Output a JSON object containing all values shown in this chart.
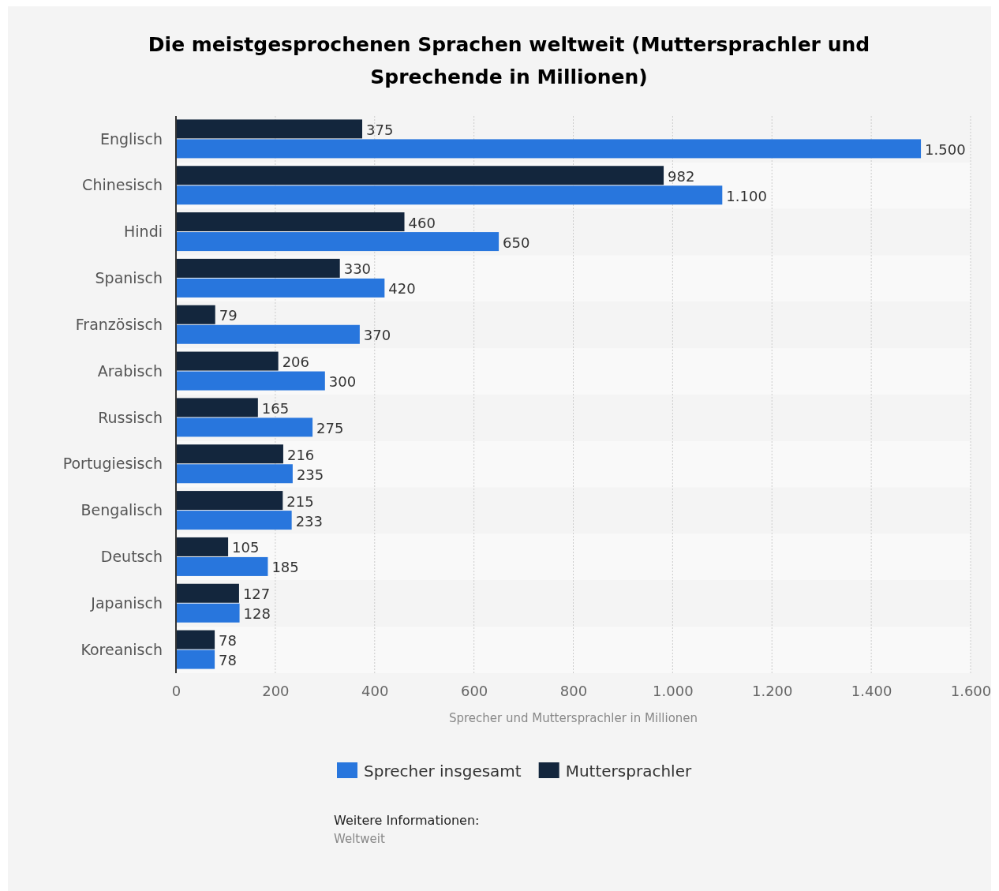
{
  "chart_data": {
    "type": "bar",
    "orientation": "horizontal",
    "title": "Die meistgesprochenen Sprachen weltweit (Muttersprachler und Sprechende in Millionen)",
    "xlabel": "Sprecher und Muttersprachler in Millionen",
    "categories": [
      "Englisch",
      "Chinesisch",
      "Hindi",
      "Spanisch",
      "Französisch",
      "Arabisch",
      "Russisch",
      "Portugiesisch",
      "Bengalisch",
      "Deutsch",
      "Japanisch",
      "Koreanisch"
    ],
    "series": [
      {
        "name": "Sprecher insgesamt",
        "color": "#2876dd",
        "values": [
          1500,
          1100,
          650,
          420,
          370,
          300,
          275,
          235,
          233,
          185,
          128,
          78
        ],
        "value_labels": [
          "1.500",
          "1.100",
          "650",
          "420",
          "370",
          "300",
          "275",
          "235",
          "233",
          "185",
          "128",
          "78"
        ]
      },
      {
        "name": "Muttersprachler",
        "color": "#13263d",
        "values": [
          375,
          982,
          460,
          330,
          79,
          206,
          165,
          216,
          215,
          105,
          127,
          78
        ],
        "value_labels": [
          "375",
          "982",
          "460",
          "330",
          "79",
          "206",
          "165",
          "216",
          "215",
          "105",
          "127",
          "78"
        ]
      }
    ],
    "xlim": [
      0,
      1600
    ],
    "xticks": [
      0,
      200,
      400,
      600,
      800,
      {
        "value": 1000,
        "label": "1.000"
      },
      {
        "value": 1200,
        "label": "1.200"
      },
      {
        "value": 1400,
        "label": "1.400"
      },
      {
        "value": 1600,
        "label": "1.600"
      }
    ],
    "grid": "x",
    "legend": "bottom",
    "annotations": [
      "Weitere Informationen:",
      "Weltweit"
    ]
  }
}
